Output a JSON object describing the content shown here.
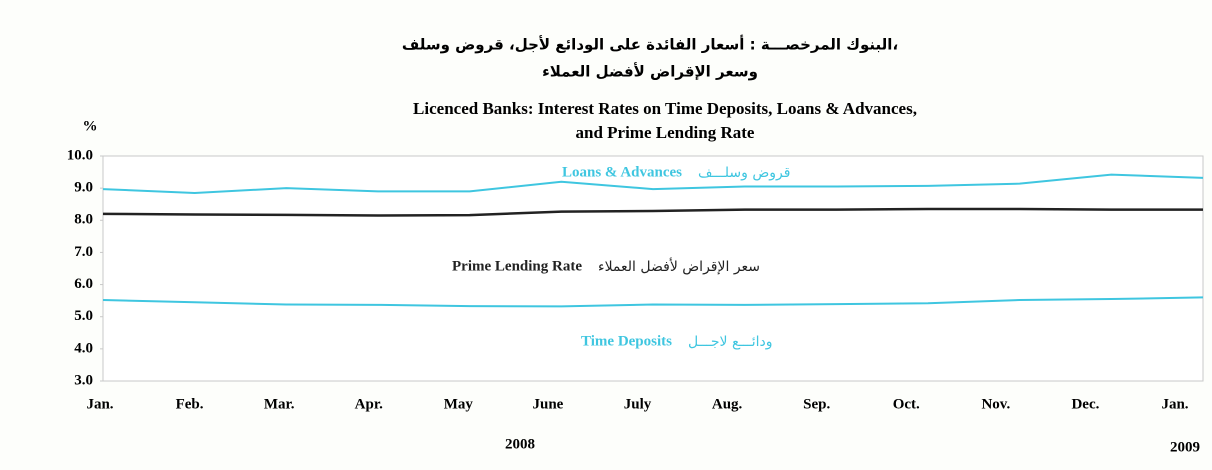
{
  "chart_data": {
    "type": "line",
    "title_ar": [
      "البنوك المرخصـــة : أسعار الفائدة على الودائع لأجل، قروض وسلف،",
      "وسعر الإقراض لأفضل العملاء"
    ],
    "title": [
      "Licenced Banks:  Interest Rates on Time Deposits, Loans & Advances,",
      "and Prime Lending Rate"
    ],
    "ylabel": "%",
    "categories": [
      "Jan.",
      "Feb.",
      "Mar.",
      "Apr.",
      "May",
      "June",
      "July",
      "Aug.",
      "Sep.",
      "Oct.",
      "Nov.",
      "Dec.",
      "Jan."
    ],
    "years": [
      "2008",
      "2009"
    ],
    "ylim": [
      3.0,
      10.0
    ],
    "yticks": [
      {
        "value": 10,
        "label": "10.0"
      },
      {
        "value": 9,
        "label": "9.0"
      },
      {
        "value": 8,
        "label": "8.0"
      },
      {
        "value": 7,
        "label": "7.0"
      },
      {
        "value": 6,
        "label": "6.0"
      },
      {
        "value": 5,
        "label": "5.0"
      },
      {
        "value": 4,
        "label": "4.0"
      },
      {
        "value": 3,
        "label": "3.0"
      }
    ],
    "series": [
      {
        "name": "Loans & Advances",
        "name_ar": "قروض وسلـــف",
        "color": "#3fc6e0",
        "values": [
          8.97,
          8.85,
          9.0,
          8.9,
          8.9,
          9.2,
          8.97,
          9.05,
          9.05,
          9.07,
          9.14,
          9.42,
          9.32
        ]
      },
      {
        "name": "Prime Lending Rate",
        "name_ar": "سعر الإقراض لأفضل العملاء",
        "color": "#222222",
        "values": [
          8.2,
          8.18,
          8.17,
          8.15,
          8.16,
          8.27,
          8.29,
          8.33,
          8.33,
          8.35,
          8.35,
          8.33,
          8.33
        ]
      },
      {
        "name": "Time Deposits",
        "name_ar": "ودائـــع لاجـــل",
        "color": "#3fc6e0",
        "values": [
          5.52,
          5.45,
          5.38,
          5.37,
          5.33,
          5.32,
          5.38,
          5.37,
          5.39,
          5.42,
          5.52,
          5.55,
          5.6
        ]
      }
    ]
  }
}
